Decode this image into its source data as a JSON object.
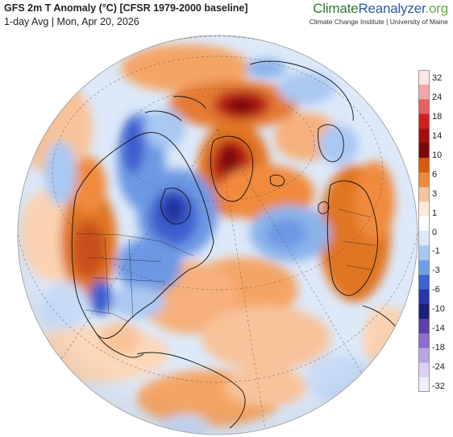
{
  "header": {
    "title": "GFS 2m T Anomaly (°C) [CFSR 1979-2000 baseline]",
    "subtitle": "1-day Avg | Mon, Apr 20, 2026"
  },
  "brand": {
    "part1": "Climate",
    "part2": "Reanalyzer",
    "part3": ".org",
    "tagline": "Climate Change Institute | University of Maine"
  },
  "legend": {
    "labels": [
      "32",
      "24",
      "18",
      "14",
      "10",
      "6",
      "3",
      "1",
      "0",
      "-1",
      "-3",
      "-6",
      "-10",
      "-14",
      "-18",
      "-24",
      "-32"
    ],
    "colors": [
      "#fde6e6",
      "#f4a7a7",
      "#e56060",
      "#d41e1e",
      "#a40e0e",
      "#7a0808",
      "#d95a0c",
      "#f08a3e",
      "#f8c39a",
      "#fcebd9",
      "#ffffff",
      "#dbe8fa",
      "#a7c8f2",
      "#6e9fe6",
      "#3c63d1",
      "#2638a8",
      "#1c1f7a",
      "#5a3ea9",
      "#8a6fce",
      "#b9a4e2",
      "#ddd0f1",
      "#f3eefb"
    ]
  },
  "map": {
    "projection": "orthographic",
    "palette": {
      "ocean_base": "#dbe8fa",
      "warm_light": "#fcd5b4",
      "warm_mid": "#f4a566",
      "warm_strong": "#e07424",
      "hot": "#b81a12",
      "hot_core": "#7a0c0c",
      "cold_light": "#a9c8f2",
      "cold_mid": "#6d98e4",
      "cold_strong": "#3d5fcf",
      "cold_core": "#2433a0"
    }
  }
}
